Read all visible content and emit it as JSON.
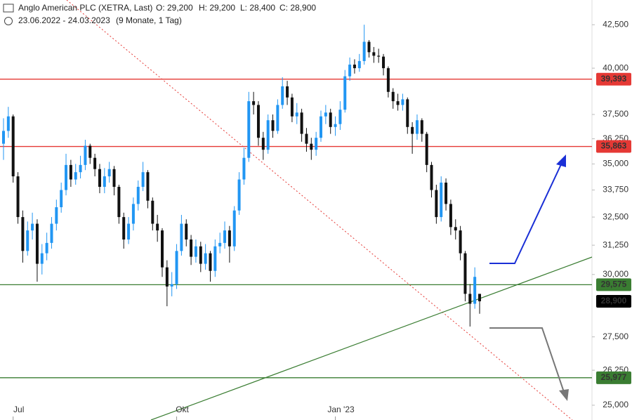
{
  "chart_data": {
    "type": "candlestick",
    "title": "Anglo American PLC (XETRA, Last)",
    "ohlc": [
      "O: 29,200",
      "H: 29,200",
      "L: 28,400",
      "C: 28,900"
    ],
    "period": "23.06.2022 - 24.03.2023",
    "duration": "(9 Monate, 1 Tag)",
    "log_scale": true,
    "up_color": "#2196f3",
    "down_color": "#111111",
    "ylim": [
      24490,
      43990
    ],
    "yticks": [
      {
        "value": 25000,
        "label": "25,000"
      },
      {
        "value": 26250,
        "label": "26,250"
      },
      {
        "value": 27500,
        "label": "27,500"
      },
      {
        "value": 30000,
        "label": "30,000"
      },
      {
        "value": 31250,
        "label": "31,250"
      },
      {
        "value": 32500,
        "label": "32,500"
      },
      {
        "value": 33750,
        "label": "33,750"
      },
      {
        "value": 35000,
        "label": "35,000"
      },
      {
        "value": 36250,
        "label": "36,250"
      },
      {
        "value": 37500,
        "label": "37,500"
      },
      {
        "value": 40000,
        "label": "40,000"
      },
      {
        "value": 42500,
        "label": "42,500"
      }
    ],
    "levels": [
      {
        "value": 39393,
        "label": "39,393",
        "color": "#e53935"
      },
      {
        "value": 35863,
        "label": "35,863",
        "color": "#e53935"
      },
      {
        "value": 29575,
        "label": "29,575",
        "color": "#3a7d32"
      },
      {
        "value": 25977,
        "label": "25,977",
        "color": "#3a7d32"
      }
    ],
    "last_price": {
      "value": 28900,
      "label": "28,900",
      "color": "#000000"
    },
    "categories": [
      null,
      null,
      "Jul",
      null,
      null,
      null,
      null,
      null,
      null,
      null,
      null,
      null,
      null,
      null,
      null,
      null,
      null,
      null,
      null,
      null,
      null,
      null,
      null,
      null,
      null,
      null,
      null,
      null,
      null,
      null,
      null,
      null,
      null,
      null,
      null,
      null,
      "Okt",
      null,
      null,
      null,
      null,
      null,
      null,
      null,
      null,
      null,
      null,
      null,
      null,
      null,
      null,
      null,
      null,
      null,
      null,
      null,
      null,
      null,
      null,
      null,
      null,
      null,
      null,
      null,
      null,
      null,
      null,
      null,
      null,
      "Jan '23",
      null,
      null,
      null,
      null,
      null,
      null,
      null,
      null,
      null,
      null,
      null,
      null,
      null,
      null,
      null,
      null,
      null,
      null,
      null,
      null,
      null,
      null,
      null,
      null,
      null,
      null,
      null,
      null,
      null,
      null
    ],
    "open": [
      36000,
      36650,
      37400,
      34400,
      32500,
      31000,
      31900,
      32200,
      30450,
      30900,
      31350,
      32200,
      32950,
      33750,
      34950,
      34250,
      34600,
      34950,
      35900,
      35300,
      34750,
      33900,
      34400,
      34750,
      33900,
      32500,
      31500,
      32200,
      33100,
      33900,
      34600,
      33250,
      32200,
      31900,
      30300,
      29500,
      29600,
      31000,
      32200,
      31500,
      30750,
      31200,
      30450,
      30900,
      30150,
      31200,
      31350,
      31900,
      31200,
      32800,
      34250,
      35300,
      38200,
      38000,
      36300,
      35700,
      37200,
      36650,
      38000,
      39000,
      38400,
      37400,
      37600,
      36500,
      36000,
      35700,
      36300,
      37400,
      37600,
      36850,
      37000,
      37750,
      39550,
      40200,
      40000,
      40400,
      41500,
      40900,
      40700,
      40650,
      40000,
      38700,
      38200,
      38000,
      38300,
      36850,
      36500,
      37200,
      36500,
      34950,
      33750,
      32500,
      34100,
      33100,
      32050,
      31900,
      30900,
      29200,
      28800,
      29200
    ],
    "high": [
      37300,
      37900,
      37500,
      34600,
      32800,
      32300,
      32700,
      32400,
      31300,
      31800,
      32500,
      33300,
      34100,
      35500,
      35200,
      35000,
      35400,
      36200,
      36000,
      35500,
      35000,
      34800,
      35100,
      34900,
      34000,
      32700,
      32500,
      33400,
      34200,
      35100,
      34700,
      33400,
      32600,
      32000,
      30600,
      30100,
      31300,
      32600,
      32400,
      31700,
      31500,
      31400,
      31300,
      31000,
      31500,
      31800,
      32300,
      32100,
      33000,
      34600,
      35800,
      38700,
      38700,
      38200,
      36600,
      37500,
      37500,
      38300,
      39500,
      39300,
      38600,
      38100,
      37800,
      36800,
      36300,
      36600,
      37700,
      38000,
      37800,
      37400,
      38200,
      39900,
      40600,
      40500,
      40800,
      42500,
      41600,
      41200,
      41100,
      40800,
      40100,
      38900,
      38600,
      38600,
      38400,
      37100,
      37500,
      37300,
      36600,
      35100,
      34000,
      34400,
      34300,
      33300,
      32400,
      32100,
      31000,
      29600,
      30300,
      29200
    ],
    "low": [
      35200,
      36300,
      34100,
      32200,
      30500,
      30800,
      31500,
      29700,
      30000,
      30600,
      31100,
      31900,
      32700,
      33500,
      33900,
      34000,
      34300,
      34700,
      35000,
      34400,
      33600,
      33600,
      34100,
      33500,
      32200,
      31100,
      31300,
      31900,
      32800,
      33700,
      32900,
      31900,
      31400,
      29900,
      28700,
      29100,
      29400,
      30800,
      31200,
      30400,
      30500,
      30100,
      30200,
      29700,
      29900,
      30900,
      31100,
      30500,
      31000,
      32600,
      34000,
      35100,
      37500,
      35900,
      35200,
      35500,
      36300,
      36500,
      37800,
      38000,
      37100,
      37000,
      36100,
      35600,
      35200,
      35400,
      36100,
      37000,
      36500,
      36400,
      36700,
      37600,
      39300,
      39700,
      39800,
      40200,
      40600,
      40300,
      40300,
      39600,
      38400,
      37800,
      37700,
      37700,
      36500,
      35500,
      36200,
      36100,
      34600,
      33400,
      32200,
      32300,
      32800,
      31700,
      31500,
      30600,
      28900,
      27900,
      28600,
      28400
    ],
    "close": [
      36650,
      37400,
      34400,
      32500,
      31000,
      31900,
      32200,
      30450,
      30900,
      31350,
      32200,
      32950,
      33750,
      34950,
      34250,
      34600,
      34950,
      35900,
      35300,
      34750,
      33900,
      34400,
      34750,
      33900,
      32500,
      31500,
      32200,
      33100,
      33900,
      34600,
      33250,
      32200,
      31900,
      30300,
      29500,
      29600,
      31000,
      32200,
      31500,
      30750,
      31200,
      30450,
      30900,
      30150,
      31200,
      31350,
      31900,
      31200,
      32800,
      34250,
      35300,
      38200,
      38000,
      36300,
      35700,
      37200,
      36650,
      38000,
      39000,
      38400,
      37400,
      37600,
      36500,
      36000,
      35700,
      36300,
      37400,
      37600,
      36850,
      37000,
      37750,
      39550,
      40200,
      40000,
      40400,
      41500,
      40900,
      40700,
      40650,
      40000,
      38700,
      38200,
      38000,
      38300,
      36850,
      36500,
      37200,
      36500,
      34950,
      33750,
      32500,
      34100,
      33100,
      32050,
      31900,
      30900,
      29200,
      28800,
      29900,
      28900
    ]
  }
}
